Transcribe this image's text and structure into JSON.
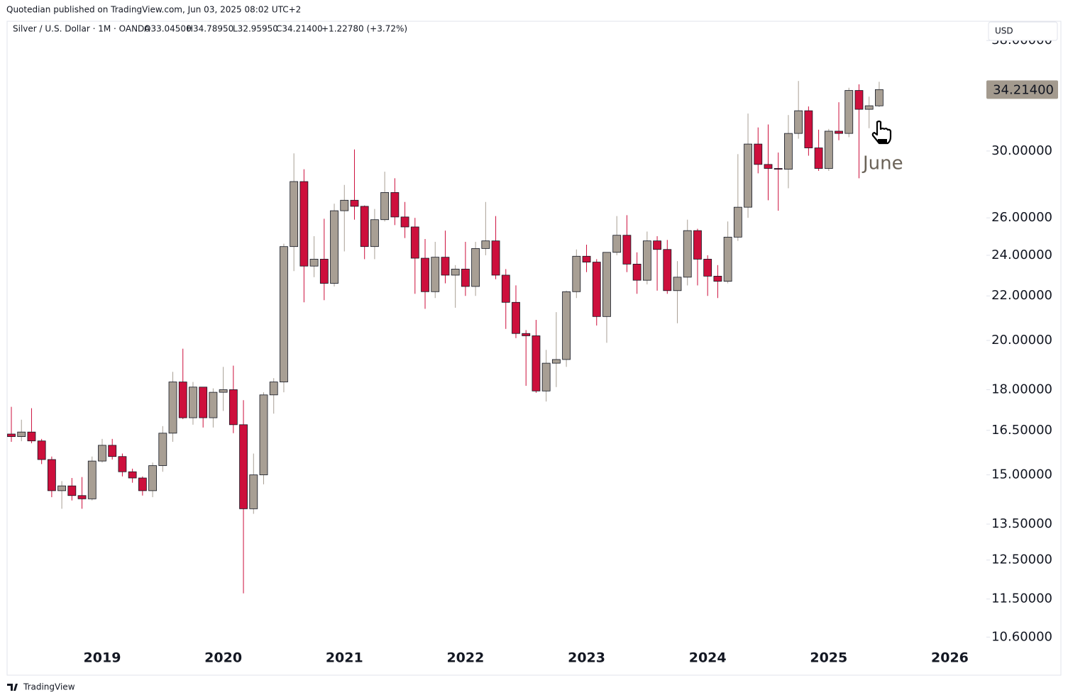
{
  "header": {
    "publisher": "Quotedian published on TradingView.com, Jun 03, 2025 08:02 UTC+2",
    "symbol": "Silver / U.S. Dollar · 1M · OANDA",
    "readout": [
      "O33.04500",
      "H34.78950",
      "L32.95950",
      "C34.21400",
      "+1.22780 (+3.72%)"
    ],
    "currency": "USD"
  },
  "footer": {
    "brand": "TradingView"
  },
  "chart_data": {
    "type": "candlestick",
    "log_scale": true,
    "colors": {
      "up": "#a89f94",
      "down": "#cd0f3c"
    },
    "annotation": "June",
    "last_price": {
      "value": 34.214,
      "label": "34.21400"
    },
    "categories": [
      null,
      null,
      null,
      null,
      null,
      null,
      null,
      null,
      null,
      "2019",
      null,
      null,
      null,
      null,
      null,
      null,
      null,
      null,
      null,
      null,
      null,
      "2020",
      null,
      null,
      null,
      null,
      null,
      null,
      null,
      null,
      null,
      null,
      null,
      "2021",
      null,
      null,
      null,
      null,
      null,
      null,
      null,
      null,
      null,
      null,
      null,
      "2022",
      null,
      null,
      null,
      null,
      null,
      null,
      null,
      null,
      null,
      null,
      null,
      "2023",
      null,
      null,
      null,
      null,
      null,
      null,
      null,
      null,
      null,
      null,
      null,
      "2024",
      null,
      null,
      null,
      null,
      null,
      null,
      null,
      null,
      null,
      null,
      null,
      "2025",
      null,
      null,
      null,
      null,
      null,
      null,
      null,
      null,
      null,
      null,
      null,
      "2026"
    ],
    "open": [
      16.37,
      16.28,
      16.44,
      16.13,
      15.5,
      14.5,
      14.65,
      14.35,
      14.25,
      15.45,
      15.98,
      15.6,
      15.1,
      14.9,
      14.5,
      15.3,
      16.4,
      18.3,
      16.95,
      18.1,
      16.95,
      17.9,
      18.0,
      16.7,
      13.95,
      15.0,
      17.8,
      18.3,
      24.45,
      28.1,
      23.45,
      23.8,
      22.6,
      26.4,
      27.0,
      26.65,
      24.45,
      25.9,
      27.45,
      26.05,
      25.5,
      23.85,
      22.2,
      23.9,
      23.0,
      23.3,
      22.45,
      24.35,
      24.75,
      23.0,
      21.7,
      20.3,
      20.2,
      17.95,
      19.05,
      19.2,
      22.2,
      23.95,
      23.65,
      21.05,
      24.15,
      25.05,
      23.55,
      22.75,
      24.75,
      24.3,
      22.25,
      22.9,
      25.3,
      23.8,
      22.95,
      22.7,
      24.95,
      26.6,
      30.45,
      29.15,
      28.9,
      28.85,
      31.15,
      32.7,
      30.2,
      28.9,
      31.3,
      31.15,
      34.15,
      32.8,
      33.045,
      null,
      null,
      null,
      null,
      null,
      null,
      null
    ],
    "high": [
      17.35,
      16.88,
      17.3,
      16.2,
      15.6,
      14.8,
      14.9,
      14.93,
      15.6,
      16.2,
      16.2,
      15.7,
      15.2,
      14.95,
      15.4,
      16.65,
      18.7,
      19.65,
      18.3,
      18.1,
      18.05,
      18.9,
      18.95,
      17.6,
      15.7,
      17.9,
      18.45,
      24.6,
      29.85,
      28.85,
      25.0,
      25.95,
      26.8,
      27.9,
      30.1,
      26.7,
      26.5,
      28.7,
      28.3,
      26.9,
      26.0,
      24.85,
      24.7,
      25.3,
      23.5,
      24.7,
      24.7,
      26.9,
      26.1,
      23.3,
      22.5,
      20.45,
      20.9,
      19.6,
      21.25,
      22.25,
      24.3,
      24.55,
      23.8,
      24.15,
      26.1,
      26.15,
      24.15,
      25.25,
      25.0,
      24.8,
      23.7,
      25.9,
      25.4,
      24.0,
      23.5,
      25.8,
      29.8,
      32.5,
      31.55,
      31.75,
      29.9,
      32.4,
      34.85,
      33.0,
      31.4,
      31.45,
      33.3,
      34.35,
      34.6,
      33.7,
      34.7895,
      null,
      null,
      null,
      null,
      null,
      null,
      null
    ],
    "low": [
      16.1,
      16.12,
      16.05,
      15.35,
      14.3,
      13.95,
      14.2,
      13.95,
      14.2,
      15.4,
      15.5,
      14.95,
      14.75,
      14.35,
      14.3,
      15.1,
      16.1,
      16.9,
      16.7,
      16.6,
      16.6,
      17.2,
      16.4,
      11.64,
      13.8,
      14.7,
      17.1,
      17.9,
      23.2,
      21.7,
      22.9,
      21.8,
      22.45,
      24.2,
      25.9,
      23.8,
      23.8,
      25.8,
      25.6,
      24.9,
      22.1,
      21.4,
      21.9,
      22.6,
      21.45,
      22.0,
      22.0,
      24.0,
      22.8,
      20.5,
      20.1,
      18.15,
      17.88,
      17.55,
      18.1,
      18.9,
      21.9,
      23.15,
      20.65,
      19.9,
      24.0,
      23.15,
      22.1,
      22.55,
      22.25,
      22.1,
      20.75,
      22.5,
      22.5,
      22.0,
      21.9,
      22.6,
      24.75,
      26.0,
      28.6,
      27.0,
      26.4,
      27.7,
      30.8,
      29.7,
      28.75,
      28.75,
      30.7,
      30.9,
      28.3,
      31.5,
      32.9595,
      null,
      null,
      null,
      null,
      null,
      null,
      null
    ],
    "close": [
      16.28,
      16.44,
      16.13,
      15.5,
      14.5,
      14.65,
      14.35,
      14.25,
      15.45,
      15.98,
      15.6,
      15.1,
      14.9,
      14.5,
      15.3,
      16.4,
      18.3,
      16.95,
      18.1,
      16.95,
      17.9,
      18.0,
      16.7,
      13.95,
      15.0,
      17.8,
      18.3,
      24.45,
      28.1,
      23.45,
      23.8,
      22.6,
      26.4,
      27.0,
      26.65,
      24.45,
      25.9,
      27.45,
      26.05,
      25.5,
      23.85,
      22.2,
      23.9,
      23.0,
      23.3,
      22.45,
      24.35,
      24.75,
      23.0,
      21.7,
      20.3,
      20.2,
      17.95,
      19.05,
      19.2,
      22.2,
      23.95,
      23.65,
      21.05,
      24.15,
      25.05,
      23.55,
      22.75,
      24.75,
      24.3,
      22.25,
      22.9,
      25.3,
      23.8,
      22.95,
      22.7,
      24.95,
      26.6,
      30.45,
      29.15,
      28.9,
      28.85,
      31.15,
      32.7,
      30.2,
      28.9,
      31.3,
      31.15,
      34.15,
      32.8,
      33.05,
      34.214,
      null,
      null,
      null,
      null,
      null,
      null,
      null
    ],
    "ylim": [
      9.8,
      39.6
    ],
    "yticks": [
      {
        "value": 10.6,
        "label": "10.60000"
      },
      {
        "value": 11.5,
        "label": "11.50000"
      },
      {
        "value": 12.5,
        "label": "12.50000"
      },
      {
        "value": 13.5,
        "label": "13.50000"
      },
      {
        "value": 15,
        "label": "15.00000"
      },
      {
        "value": 16.5,
        "label": "16.50000"
      },
      {
        "value": 18,
        "label": "18.00000"
      },
      {
        "value": 20,
        "label": "20.00000"
      },
      {
        "value": 22,
        "label": "22.00000"
      },
      {
        "value": 24,
        "label": "24.00000"
      },
      {
        "value": 26,
        "label": "26.00000"
      },
      {
        "value": 30,
        "label": "30.00000"
      },
      {
        "value": 38,
        "label": "38.00000"
      }
    ]
  }
}
